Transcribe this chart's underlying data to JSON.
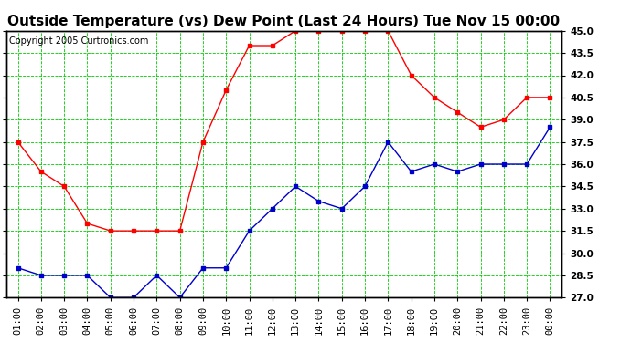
{
  "title": "Outside Temperature (vs) Dew Point (Last 24 Hours) Tue Nov 15 00:00",
  "copyright": "Copyright 2005 Curtronics.com",
  "x_labels": [
    "01:00",
    "02:00",
    "03:00",
    "04:00",
    "05:00",
    "06:00",
    "07:00",
    "08:00",
    "09:00",
    "10:00",
    "11:00",
    "12:00",
    "13:00",
    "14:00",
    "15:00",
    "16:00",
    "17:00",
    "18:00",
    "19:00",
    "20:00",
    "21:00",
    "22:00",
    "23:00",
    "00:00"
  ],
  "red_data": [
    37.5,
    35.5,
    34.5,
    32.0,
    31.5,
    31.5,
    31.5,
    31.5,
    37.5,
    41.0,
    44.0,
    44.0,
    45.0,
    45.0,
    45.0,
    45.0,
    45.0,
    42.0,
    40.5,
    39.5,
    38.5,
    39.0,
    40.5,
    40.5
  ],
  "blue_data": [
    29.0,
    28.5,
    28.5,
    28.5,
    27.0,
    27.0,
    28.5,
    27.0,
    29.0,
    29.0,
    31.5,
    33.0,
    34.5,
    33.5,
    33.0,
    34.5,
    37.5,
    35.5,
    36.0,
    35.5,
    36.0,
    36.0,
    36.0,
    38.5
  ],
  "red_color": "#ff0000",
  "blue_color": "#0000cc",
  "bg_color": "#ffffff",
  "grid_color": "#00cc00",
  "ylim": [
    27.0,
    45.0
  ],
  "yticks": [
    27.0,
    28.5,
    30.0,
    31.5,
    33.0,
    34.5,
    36.0,
    37.5,
    39.0,
    40.5,
    42.0,
    43.5,
    45.0
  ],
  "title_fontsize": 11,
  "copyright_fontsize": 7,
  "tick_fontsize": 7.5
}
